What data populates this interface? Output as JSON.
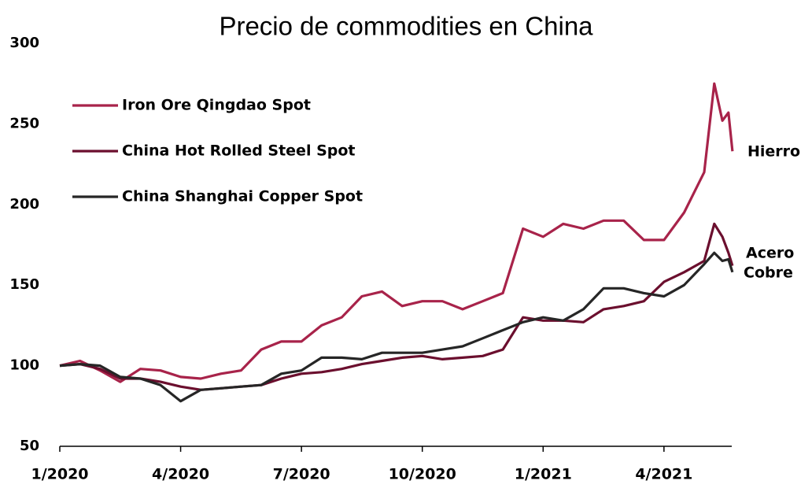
{
  "chart_data": {
    "type": "line",
    "title": "Precio de commodities en China",
    "x": [
      0,
      0.5,
      1,
      1.5,
      2,
      2.5,
      3,
      3.5,
      4,
      4.5,
      5,
      5.5,
      6,
      6.5,
      7,
      7.5,
      8,
      8.5,
      9,
      9.5,
      10,
      10.5,
      11,
      11.5,
      12,
      12.5,
      13,
      13.5,
      14,
      14.5,
      15,
      15.5,
      16,
      16.25,
      16.45,
      16.6,
      16.7
    ],
    "series": [
      {
        "name": "Iron Ore Qingdao Spot",
        "color": "#a8234a",
        "values": [
          100,
          103,
          97,
          90,
          98,
          97,
          93,
          92,
          95,
          97,
          110,
          115,
          115,
          125,
          130,
          143,
          146,
          137,
          140,
          140,
          135,
          140,
          145,
          185,
          180,
          188,
          185,
          190,
          190,
          178,
          178,
          195,
          220,
          275,
          252,
          257,
          233
        ]
      },
      {
        "name": "China Hot Rolled Steel Spot",
        "color": "#6b0f2e",
        "values": [
          100,
          101,
          98,
          92,
          92,
          90,
          87,
          85,
          86,
          87,
          88,
          92,
          95,
          96,
          98,
          101,
          103,
          105,
          106,
          104,
          105,
          106,
          110,
          130,
          128,
          128,
          127,
          135,
          137,
          140,
          152,
          158,
          165,
          188,
          180,
          170,
          162
        ]
      },
      {
        "name": "China Shanghai Copper Spot",
        "color": "#262626",
        "values": [
          100,
          101,
          100,
          93,
          92,
          88,
          78,
          85,
          86,
          87,
          88,
          95,
          97,
          105,
          105,
          104,
          108,
          108,
          108,
          110,
          112,
          117,
          122,
          127,
          130,
          128,
          135,
          148,
          148,
          145,
          143,
          150,
          163,
          170,
          165,
          166,
          158
        ]
      }
    ],
    "annotations": [
      {
        "text": "Hierro",
        "series": 0
      },
      {
        "text": "Acero",
        "series": 1
      },
      {
        "text": "Cobre",
        "series": 2
      }
    ],
    "xlim": [
      0,
      16.8
    ],
    "xticks": [
      {
        "value": 0,
        "label": "1/2020"
      },
      {
        "value": 3,
        "label": "4/2020"
      },
      {
        "value": 6,
        "label": "7/2020"
      },
      {
        "value": 9,
        "label": "10/2020"
      },
      {
        "value": 12,
        "label": "1/2021"
      },
      {
        "value": 15,
        "label": "4/2021"
      }
    ],
    "ylim": [
      50,
      300
    ],
    "yticks": [
      50,
      100,
      150,
      200,
      250,
      300
    ],
    "grid": false,
    "legend": "upper left"
  }
}
